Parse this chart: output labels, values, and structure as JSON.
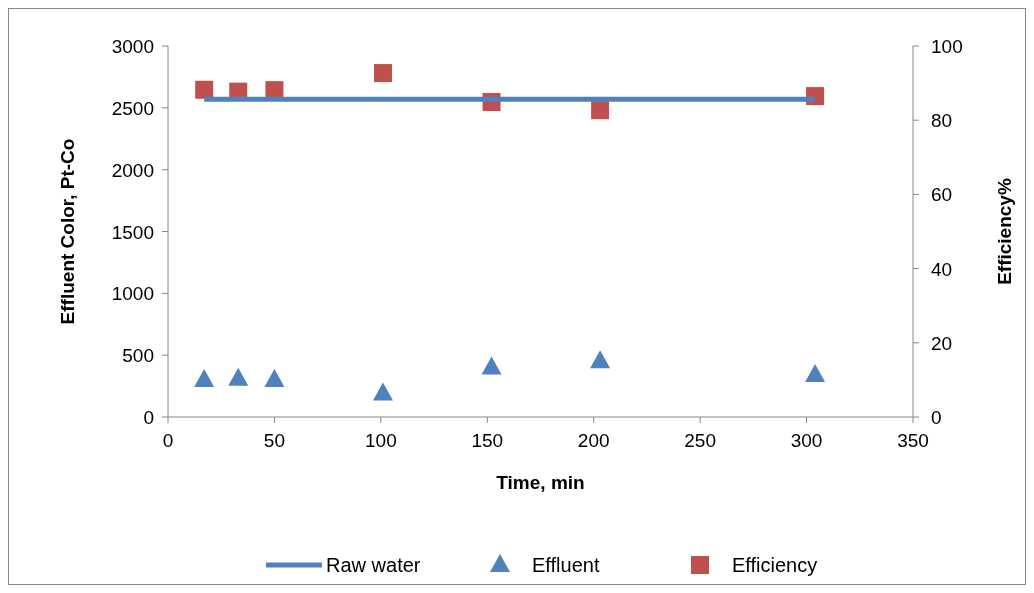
{
  "chart_data": {
    "type": "scatter",
    "xlabel": "Time, min",
    "ylabel": "Effluent Color, Pt-Co",
    "y2label": "Efficiency%",
    "xlim": [
      0,
      350
    ],
    "xticks": [
      0,
      50,
      100,
      150,
      200,
      250,
      300,
      350
    ],
    "ylim": [
      0,
      3000
    ],
    "yticks": [
      0,
      500,
      1000,
      1500,
      2000,
      2500,
      3000
    ],
    "y2lim": [
      0,
      100
    ],
    "y2ticks": [
      0,
      20,
      40,
      60,
      80,
      100
    ],
    "legend": "bottom",
    "grid": false,
    "series": [
      {
        "name": "Raw water",
        "type": "line",
        "color": "#4f81bd",
        "marker": "none",
        "line_style": "solid",
        "x": [
          17,
          304
        ],
        "values": [
          2570,
          2570
        ]
      },
      {
        "name": "Effluent",
        "color": "#4f81bd",
        "marker": "triangle",
        "x": [
          17,
          33,
          50,
          101,
          152,
          203,
          304
        ],
        "values": [
          300,
          310,
          300,
          190,
          400,
          450,
          340
        ]
      },
      {
        "name": "Efficiency",
        "color": "#c0504d",
        "marker": "square",
        "axis": "y2",
        "x": [
          17,
          33,
          50,
          101,
          152,
          203,
          304
        ],
        "values": [
          88.2,
          87.7,
          88.1,
          92.7,
          84.9,
          82.7,
          86.5
        ]
      }
    ]
  }
}
